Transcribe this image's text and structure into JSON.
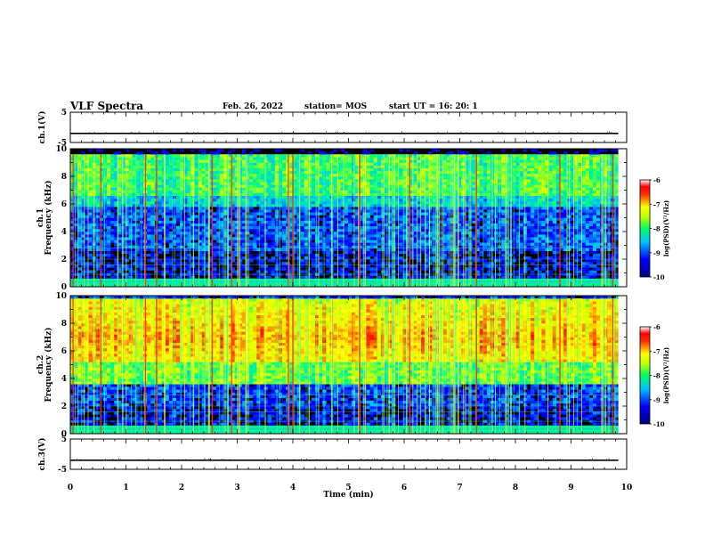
{
  "header": {
    "title": "VLF Spectra",
    "date": "Feb. 26, 2022",
    "station": "station= MOS",
    "start": "start  UT  =   16: 20: 1"
  },
  "chart_data": [
    {
      "type": "line",
      "panel": "ch1-voltage",
      "ylabel": "ch.1(V)",
      "ylim": [
        -5,
        5
      ],
      "yticks": [
        "5",
        "-5"
      ],
      "xlim": [
        0,
        10
      ],
      "series": [
        {
          "x": [
            0,
            9.85
          ],
          "values": [
            -2,
            -2
          ]
        }
      ]
    },
    {
      "type": "heatmap",
      "panel": "ch1-spectrogram",
      "ylabel": "ch.1\nFrequency (kHz)",
      "ylim": [
        0,
        10
      ],
      "yticks": [
        "0",
        "2",
        "4",
        "6",
        "8",
        "10"
      ],
      "xlim": [
        0,
        9.85
      ],
      "colorbar": {
        "label": "log(PSD)(V²/Hz)",
        "range": [
          -10,
          -6
        ],
        "ticks": [
          "-6",
          "-7",
          "-8",
          "-9",
          "-10"
        ]
      }
    },
    {
      "type": "heatmap",
      "panel": "ch2-spectrogram",
      "ylabel": "ch.2\nFrequency (kHz)",
      "ylim": [
        0,
        10
      ],
      "yticks": [
        "0",
        "2",
        "4",
        "6",
        "8",
        "10"
      ],
      "xlim": [
        0,
        9.85
      ],
      "colorbar": {
        "label": "log(PSD)(V²/Hz)",
        "range": [
          -10,
          -6
        ],
        "ticks": [
          "-6",
          "-7",
          "-8",
          "-9",
          "-10"
        ]
      }
    },
    {
      "type": "line",
      "panel": "ch3-voltage",
      "ylabel": "ch.3(V)",
      "ylim": [
        -5,
        5
      ],
      "yticks": [
        "5",
        "-5"
      ],
      "xlim": [
        0,
        10
      ],
      "series": [
        {
          "x": [
            0,
            9.85
          ],
          "values": [
            -2,
            -2
          ]
        }
      ]
    }
  ],
  "xaxis": {
    "label": "Time (min)",
    "ticks": [
      "0",
      "1",
      "2",
      "3",
      "4",
      "5",
      "6",
      "7",
      "8",
      "9",
      "10"
    ]
  },
  "colors": {
    "background": "#000000",
    "cmap": [
      "#00007f",
      "#0000ff",
      "#00bfff",
      "#00ff80",
      "#c8ff00",
      "#ffff00",
      "#ff8000",
      "#ff0000",
      "#ffffff"
    ]
  }
}
